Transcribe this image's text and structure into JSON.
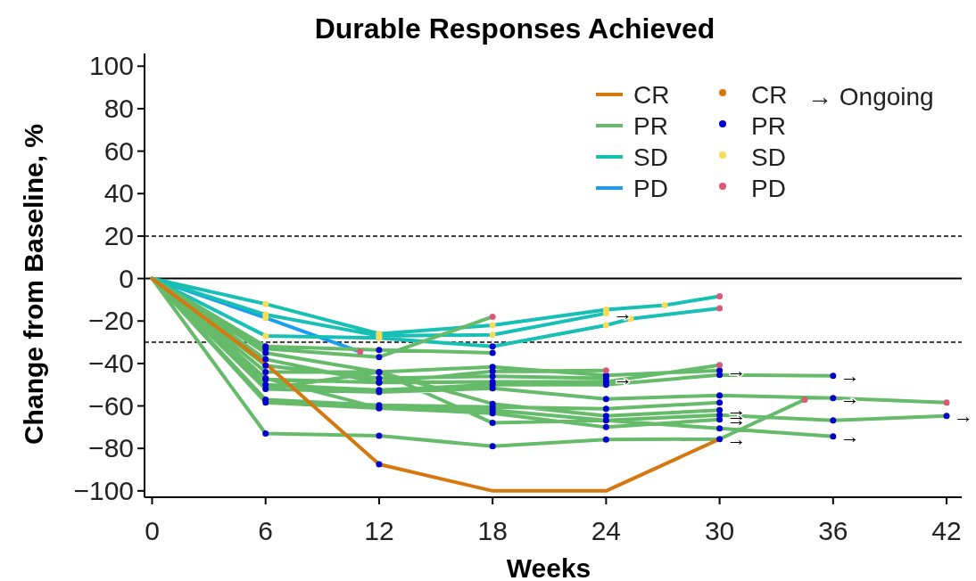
{
  "chart_data": {
    "type": "line",
    "title": "Durable Responses Achieved",
    "xlabel": "Weeks",
    "ylabel": "Change from Baseline, %",
    "xlim": [
      -0.4,
      42.8
    ],
    "ylim": [
      -103,
      106
    ],
    "xticks": [
      0,
      6,
      12,
      18,
      24,
      30,
      36,
      42
    ],
    "yticks": [
      -100,
      -80,
      -60,
      -40,
      -20,
      0,
      20,
      40,
      60,
      80,
      100
    ],
    "legend": "top right",
    "ref_lines": [
      {
        "axis": "y",
        "value": 20,
        "line_style": "dashed"
      },
      {
        "axis": "y",
        "value": -30,
        "line_style": "dashed"
      },
      {
        "axis": "y",
        "value": 0,
        "line_style": "solid"
      }
    ],
    "series": [
      {
        "name": "CR",
        "color": "#d4780f",
        "x": [
          0,
          6,
          12,
          18,
          24,
          30
        ],
        "values": [
          0,
          -40,
          -87.5,
          -100,
          -100,
          -75.6
        ]
      },
      {
        "name": "PR",
        "color": "#66bb6a",
        "x": [
          0,
          6,
          12,
          18,
          null,
          0,
          6,
          12,
          18,
          null,
          0,
          6,
          12,
          18,
          24,
          30,
          null,
          0,
          6,
          12,
          18,
          24,
          null,
          0,
          6,
          12,
          18,
          24,
          null,
          0,
          6,
          12,
          18,
          24,
          30,
          null,
          0,
          6,
          12,
          18,
          24,
          30,
          null,
          0,
          6,
          12,
          18,
          24,
          30,
          36,
          null,
          0,
          6,
          12,
          18,
          24,
          30,
          36,
          42,
          null,
          0,
          6,
          12,
          18,
          24,
          30,
          null,
          0,
          6,
          12,
          18,
          24,
          30,
          36,
          42,
          null,
          0,
          6,
          12,
          18,
          24,
          30,
          34.5,
          null,
          0,
          6,
          12,
          18,
          24,
          30,
          null,
          0,
          6,
          12,
          18,
          24,
          30,
          36
        ],
        "values": [
          0,
          -32,
          -33.6,
          -35,
          null,
          0,
          -33,
          -37,
          -18,
          null,
          0,
          -35,
          -44,
          -41.6,
          -45.6,
          -43.3,
          null,
          0,
          -38,
          -49,
          -43.7,
          -43.3,
          null,
          0,
          -41,
          -47,
          -46,
          -47,
          null,
          0,
          -44,
          -44,
          -59,
          -64.7,
          -62,
          null,
          0,
          -47.5,
          -49,
          -48.7,
          -48.6,
          -40.8,
          null,
          0,
          -50,
          -52.5,
          -50,
          -50,
          -45.4,
          -45.8,
          null,
          0,
          -52,
          -53.5,
          -51.7,
          -56.7,
          -55,
          -56.3,
          -58.4,
          null,
          0,
          -57,
          -59.7,
          -60.5,
          -61.3,
          -58.4,
          null,
          0,
          -58.4,
          -61,
          -62,
          -66.8,
          -64.3,
          -66.8,
          -64.7,
          null,
          0,
          -73,
          -74,
          -79,
          -75.8,
          -75.6,
          -57,
          null,
          0,
          -47,
          -61,
          -63.4,
          -70,
          -66.4,
          null,
          0,
          -52,
          -44,
          -68,
          -66.8,
          -70.6,
          -74.4
        ]
      },
      {
        "name": "SD",
        "color": "#17bfb4",
        "x": [
          0,
          6,
          12,
          18,
          24,
          27.1,
          30,
          null,
          0,
          6,
          12,
          18,
          24,
          null,
          0,
          6,
          12,
          18,
          24,
          25.3,
          30
        ],
        "values": [
          0,
          -12,
          -26,
          -22,
          -14.7,
          -12.6,
          -8.4,
          null,
          0,
          -17,
          -27,
          -26.5,
          -16.4,
          null,
          0,
          -27,
          -28,
          -32,
          -22,
          -19,
          -14
        ]
      },
      {
        "name": "PD",
        "color": "#1a9cf0",
        "x": [
          0,
          6,
          11
        ],
        "values": [
          0,
          -18.5,
          -34.5
        ]
      },
      {
        "name": "CR",
        "type": "scatter",
        "marker": "circle",
        "color": "#d4780f"
      },
      {
        "name": "PR",
        "type": "scatter",
        "marker": "circle",
        "color": "#0000cc",
        "x": [
          6,
          6,
          6,
          6,
          6,
          6,
          6,
          6,
          6,
          6,
          6,
          6,
          6,
          12,
          12,
          12,
          12,
          12,
          12,
          12,
          12,
          12,
          12,
          12,
          12,
          12,
          12,
          18,
          18,
          18,
          18,
          18,
          18,
          18,
          18,
          18,
          18,
          18,
          18,
          18,
          18,
          24,
          24,
          24,
          24,
          24,
          24,
          24,
          24,
          24,
          24,
          30,
          30,
          30,
          30,
          30,
          30,
          30,
          30,
          30,
          36,
          36,
          36,
          36,
          42
        ],
        "values": [
          -32,
          -33,
          -35,
          -38,
          -41,
          -44,
          -47.5,
          -50,
          -52,
          -57,
          -58.4,
          -73,
          -47,
          -33.6,
          -37,
          -44,
          -49,
          -47,
          -52.5,
          -53.5,
          -59.7,
          -61,
          -74,
          -87.5,
          -61,
          -44,
          -49,
          -35,
          -41.6,
          -43.7,
          -46,
          -59,
          -48.7,
          -50,
          -51.7,
          -60.5,
          -62,
          -79,
          -63.4,
          -68,
          -32,
          -45.6,
          -47,
          -64.7,
          -48.6,
          -50,
          -56.7,
          -61.3,
          -66.8,
          -75.8,
          -70,
          -43.3,
          -62,
          -45.4,
          -55,
          -58.4,
          -64.3,
          -66.4,
          -70.6,
          -75.6,
          -45.8,
          -56.3,
          -66.8,
          -74.4,
          -64.7
        ]
      },
      {
        "name": "SD",
        "type": "scatter",
        "marker": "circle",
        "color": "#f5dc5a",
        "x": [
          6,
          6,
          6,
          6,
          12,
          12,
          12,
          18,
          18,
          24,
          24,
          24,
          27.1,
          25.3
        ],
        "values": [
          -12,
          -17,
          -27,
          -18.5,
          -26,
          -27,
          -28,
          -22,
          -26.5,
          -14.7,
          -16.4,
          -22,
          -12.6,
          -19
        ]
      },
      {
        "name": "PD",
        "type": "scatter",
        "marker": "circle",
        "color": "#d85a78",
        "x": [
          18,
          24,
          30,
          42,
          34.5,
          11,
          30,
          30
        ],
        "values": [
          -18,
          -43.3,
          -40.8,
          -58.4,
          -57,
          -34.5,
          -8.4,
          -14
        ]
      }
    ],
    "annotations": [
      "→ Ongoing",
      {
        "text": "→",
        "x": 24,
        "y": -16.4
      },
      {
        "text": "→",
        "x": 24,
        "y": -47
      },
      {
        "text": "→",
        "x": 30,
        "y": -43.3
      },
      {
        "text": "→",
        "x": 30,
        "y": -62
      },
      {
        "text": "→",
        "x": 30,
        "y": -64.3
      },
      {
        "text": "→",
        "x": 30,
        "y": -66.4
      },
      {
        "text": "→",
        "x": 30,
        "y": -75.6
      },
      {
        "text": "→",
        "x": 36,
        "y": -45.8
      },
      {
        "text": "→",
        "x": 36,
        "y": -56.3
      },
      {
        "text": "→",
        "x": 36,
        "y": -74.4
      },
      {
        "text": "→",
        "x": 42,
        "y": -64.7
      }
    ]
  }
}
